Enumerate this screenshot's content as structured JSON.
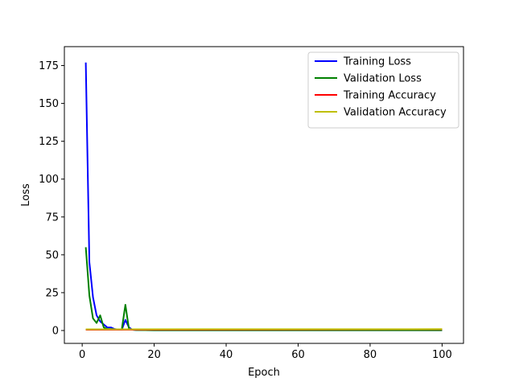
{
  "chart_data": {
    "type": "line",
    "xlabel": "Epoch",
    "ylabel": "Loss",
    "xlim": [
      -4.95,
      105.95
    ],
    "ylim": [
      -8.5,
      187.5
    ],
    "xticks": [
      0,
      20,
      40,
      60,
      80,
      100
    ],
    "yticks": [
      0,
      25,
      50,
      75,
      100,
      125,
      150,
      175
    ],
    "grid": false,
    "legend_position": "top-right",
    "series": [
      {
        "name": "Training Loss",
        "color": "#0000ff",
        "points": [
          [
            1,
            177
          ],
          [
            2,
            45
          ],
          [
            3,
            22
          ],
          [
            4,
            10
          ],
          [
            5,
            6
          ],
          [
            6,
            4
          ],
          [
            7,
            2
          ],
          [
            8,
            2
          ],
          [
            9,
            1
          ],
          [
            10,
            0.7
          ],
          [
            11,
            0.5
          ],
          [
            12,
            7
          ],
          [
            13,
            2
          ],
          [
            14,
            0.5
          ],
          [
            15,
            0.3
          ],
          [
            20,
            0.2
          ],
          [
            30,
            0.2
          ],
          [
            40,
            0.2
          ],
          [
            50,
            0.2
          ],
          [
            60,
            0.2
          ],
          [
            70,
            0.2
          ],
          [
            80,
            0.2
          ],
          [
            90,
            0.2
          ],
          [
            100,
            0.2
          ]
        ]
      },
      {
        "name": "Validation Loss",
        "color": "#008000",
        "points": [
          [
            1,
            55
          ],
          [
            2,
            23
          ],
          [
            3,
            8
          ],
          [
            4,
            5
          ],
          [
            5,
            10
          ],
          [
            6,
            2
          ],
          [
            7,
            1
          ],
          [
            8,
            1
          ],
          [
            9,
            0.8
          ],
          [
            10,
            0.5
          ],
          [
            11,
            0.7
          ],
          [
            12,
            17
          ],
          [
            13,
            1
          ],
          [
            14,
            0.5
          ],
          [
            15,
            0.3
          ],
          [
            20,
            0.2
          ],
          [
            30,
            0.2
          ],
          [
            40,
            0.2
          ],
          [
            50,
            0.2
          ],
          [
            60,
            0.2
          ],
          [
            70,
            0.2
          ],
          [
            80,
            0.2
          ],
          [
            90,
            0.2
          ],
          [
            100,
            0.2
          ]
        ]
      },
      {
        "name": "Training Accuracy",
        "color": "#ff0000",
        "points": [
          [
            1,
            0.5
          ],
          [
            100,
            0.8
          ]
        ]
      },
      {
        "name": "Validation Accuracy",
        "color": "#bfbf00",
        "points": [
          [
            1,
            0.8
          ],
          [
            100,
            0.9
          ]
        ]
      }
    ]
  }
}
